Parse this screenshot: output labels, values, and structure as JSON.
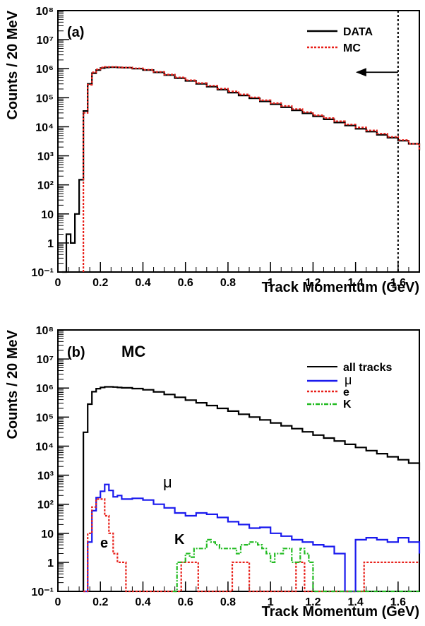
{
  "chart_data": [
    {
      "type": "line",
      "panel_label": "(a)",
      "xlabel": "Track Momentum (GeV)",
      "ylabel": "Counts / 20 MeV",
      "xlim": [
        0,
        1.7
      ],
      "ylim": [
        0.1,
        100000000
      ],
      "yscale": "log",
      "x_ticks": [
        "0",
        "0.2",
        "0.4",
        "0.6",
        "0.8",
        "1",
        "1.2",
        "1.4",
        "1.6"
      ],
      "y_ticks": [
        "10⁻¹",
        "1",
        "10",
        "10²",
        "10³",
        "10⁴",
        "10⁵",
        "10⁶",
        "10⁷",
        "10⁸"
      ],
      "legend_position": "top-right",
      "cut_line_x": 1.6,
      "cut_arrow": "left",
      "series": [
        {
          "name": "DATA",
          "color": "#000000",
          "style": "solid",
          "x": [
            0.02,
            0.04,
            0.06,
            0.08,
            0.1,
            0.12,
            0.14,
            0.16,
            0.18,
            0.2,
            0.22,
            0.24,
            0.26,
            0.28,
            0.3,
            0.35,
            0.4,
            0.45,
            0.5,
            0.55,
            0.6,
            0.65,
            0.7,
            0.75,
            0.8,
            0.85,
            0.9,
            0.95,
            1.0,
            1.05,
            1.1,
            1.15,
            1.2,
            1.25,
            1.3,
            1.35,
            1.4,
            1.45,
            1.5,
            1.55,
            1.6,
            1.65,
            1.7
          ],
          "y": [
            0.1,
            2,
            1,
            10,
            150,
            35000,
            300000,
            700000,
            900000,
            1050000,
            1100000,
            1120000,
            1120000,
            1100000,
            1080000,
            1000000,
            900000,
            750000,
            600000,
            470000,
            380000,
            300000,
            240000,
            190000,
            150000,
            120000,
            95000,
            75000,
            60000,
            47000,
            37000,
            29000,
            23000,
            18000,
            14000,
            11000,
            8500,
            6800,
            5300,
            4200,
            3300,
            2600,
            1500
          ]
        },
        {
          "name": "MC",
          "color": "#e8201a",
          "style": "dotted",
          "x": [
            0.12,
            0.14,
            0.16,
            0.18,
            0.2,
            0.22,
            0.24,
            0.26,
            0.28,
            0.3,
            0.35,
            0.4,
            0.45,
            0.5,
            0.55,
            0.6,
            0.65,
            0.7,
            0.75,
            0.8,
            0.85,
            0.9,
            0.95,
            1.0,
            1.05,
            1.1,
            1.15,
            1.2,
            1.25,
            1.3,
            1.35,
            1.4,
            1.45,
            1.5,
            1.55,
            1.6,
            1.65,
            1.7
          ],
          "y": [
            30000,
            280000,
            750000,
            950000,
            1100000,
            1150000,
            1150000,
            1150000,
            1120000,
            1100000,
            1030000,
            920000,
            780000,
            630000,
            500000,
            400000,
            320000,
            260000,
            205000,
            165000,
            130000,
            103000,
            82000,
            65000,
            52000,
            41000,
            32000,
            25000,
            20000,
            15500,
            12000,
            9500,
            7500,
            5800,
            4500,
            3500,
            2600,
            1500
          ]
        }
      ]
    },
    {
      "type": "line",
      "panel_label": "(b)",
      "title": "MC",
      "xlabel": "Track Momentum (GeV)",
      "ylabel": "Counts / 20 MeV",
      "xlim": [
        0,
        1.7
      ],
      "ylim": [
        0.1,
        100000000
      ],
      "yscale": "log",
      "x_ticks": [
        "0",
        "0.2",
        "0.4",
        "0.6",
        "0.8",
        "1",
        "1.2",
        "1.4",
        "1.6"
      ],
      "y_ticks": [
        "10⁻¹",
        "1",
        "10",
        "10²",
        "10³",
        "10⁴",
        "10⁵",
        "10⁶",
        "10⁷",
        "10⁸"
      ],
      "legend_position": "top-right",
      "annotations": [
        {
          "text": "μ",
          "x": 0.52,
          "y": 500
        },
        {
          "text": "e",
          "x": 0.22,
          "y": 2.5
        },
        {
          "text": "K",
          "x": 0.58,
          "y": 5
        }
      ],
      "series": [
        {
          "name": "all tracks",
          "color": "#000000",
          "style": "solid",
          "x": [
            0.12,
            0.14,
            0.16,
            0.18,
            0.2,
            0.22,
            0.24,
            0.26,
            0.28,
            0.3,
            0.35,
            0.4,
            0.45,
            0.5,
            0.55,
            0.6,
            0.65,
            0.7,
            0.75,
            0.8,
            0.85,
            0.9,
            0.95,
            1.0,
            1.05,
            1.1,
            1.15,
            1.2,
            1.25,
            1.3,
            1.35,
            1.4,
            1.45,
            1.5,
            1.55,
            1.6,
            1.65,
            1.7
          ],
          "y": [
            30000,
            280000,
            750000,
            950000,
            1050000,
            1100000,
            1100000,
            1080000,
            1050000,
            1020000,
            960000,
            870000,
            740000,
            600000,
            480000,
            385000,
            310000,
            250000,
            200000,
            160000,
            125000,
            100000,
            80000,
            63000,
            50000,
            40000,
            31000,
            24000,
            19000,
            15000,
            11500,
            9000,
            7000,
            5500,
            4300,
            3400,
            2600,
            1500
          ]
        },
        {
          "name": "μ",
          "color": "#1a1aee",
          "style": "solid",
          "x": [
            0.12,
            0.14,
            0.16,
            0.18,
            0.2,
            0.22,
            0.24,
            0.26,
            0.28,
            0.3,
            0.35,
            0.4,
            0.45,
            0.5,
            0.55,
            0.6,
            0.65,
            0.7,
            0.75,
            0.8,
            0.85,
            0.9,
            0.95,
            1.0,
            1.05,
            1.1,
            1.15,
            1.2,
            1.25,
            1.3,
            1.35,
            1.4,
            1.45,
            1.5,
            1.55,
            1.6,
            1.65,
            1.7
          ],
          "y": [
            0.1,
            5,
            60,
            170,
            280,
            480,
            300,
            180,
            200,
            150,
            160,
            140,
            100,
            75,
            50,
            40,
            50,
            45,
            35,
            25,
            20,
            15,
            16,
            10,
            8,
            6,
            5,
            4,
            3.5,
            2,
            0.1,
            6,
            7,
            6,
            5,
            7,
            5,
            2
          ],
          "level_end": 0.1
        },
        {
          "name": "e",
          "color": "#e8201a",
          "style": "dotted",
          "x": [
            0.12,
            0.14,
            0.16,
            0.18,
            0.2,
            0.22,
            0.24,
            0.26,
            0.28,
            0.3,
            0.32,
            0.34,
            0.56,
            0.58,
            0.6,
            0.62,
            0.64,
            0.66,
            0.8,
            0.82,
            0.84,
            0.86,
            0.88,
            0.9,
            1.1,
            1.12,
            1.14,
            1.16,
            1.42,
            1.44
          ],
          "y": [
            0.1,
            10,
            80,
            150,
            150,
            40,
            10,
            2,
            1,
            1,
            0.1,
            0.1,
            0.1,
            1,
            1,
            1,
            1,
            0.1,
            0.1,
            1,
            1,
            1,
            1,
            0.1,
            0.1,
            1,
            1,
            0.1,
            0.1,
            1
          ]
        },
        {
          "name": "K",
          "color": "#22bb22",
          "style": "dashdot",
          "x": [
            0.54,
            0.56,
            0.58,
            0.6,
            0.62,
            0.64,
            0.66,
            0.68,
            0.7,
            0.72,
            0.74,
            0.76,
            0.78,
            0.8,
            0.82,
            0.84,
            0.86,
            0.88,
            0.9,
            0.92,
            0.94,
            0.96,
            0.98,
            1.0,
            1.02,
            1.04,
            1.06,
            1.08,
            1.1,
            1.12,
            1.14,
            1.16,
            1.18,
            1.2
          ],
          "y": [
            0.1,
            1,
            1,
            2,
            1.5,
            3,
            3,
            3,
            6,
            5,
            4,
            3,
            3,
            3,
            3,
            2,
            4,
            4,
            5,
            5,
            4,
            3,
            2,
            1,
            2,
            2,
            3,
            3,
            1,
            1,
            3,
            2,
            1,
            0.1
          ]
        }
      ]
    }
  ]
}
